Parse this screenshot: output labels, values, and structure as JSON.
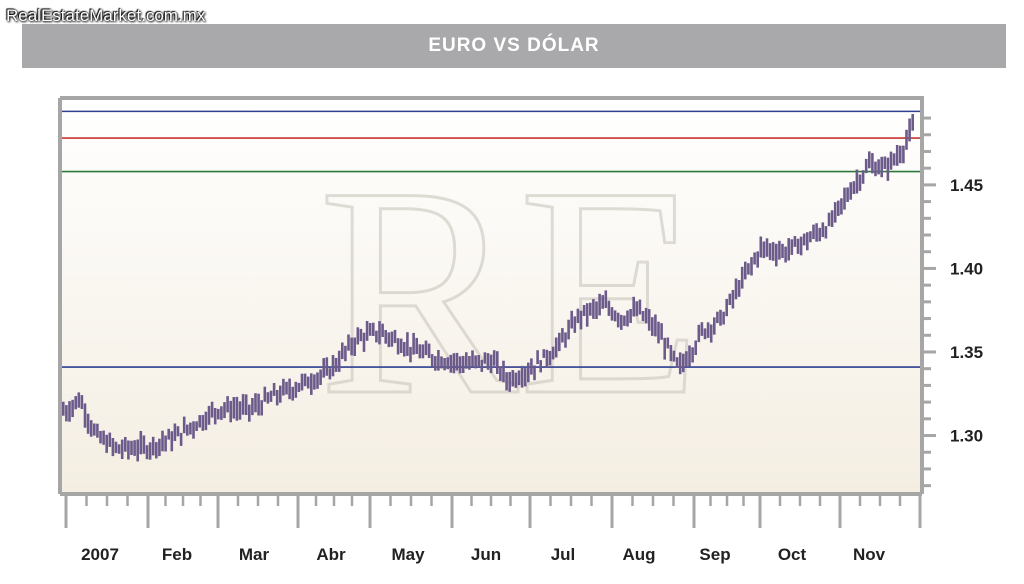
{
  "site": {
    "label": "RealEstateMarket.com.mx"
  },
  "watermark": {
    "text": "RE"
  },
  "colors": {
    "bar": "#6b5a8a",
    "blue_line": "#2e3f91",
    "red_line": "#c83232",
    "green_line": "#2d7a3a",
    "frame": "#a6a6a6",
    "bg_top": "#ffffff",
    "bg_bottom": "#f4eee2"
  },
  "chart_data": {
    "type": "bar",
    "subtype": "ohlc",
    "title": "EURO VS DÓLAR",
    "xlabel": "",
    "ylabel": "",
    "ylim": [
      1.265,
      1.502
    ],
    "y_ticks": [
      {
        "value": 1.3,
        "label": "1.30"
      },
      {
        "value": 1.35,
        "label": "1.35"
      },
      {
        "value": 1.4,
        "label": "1.40"
      },
      {
        "value": 1.45,
        "label": "1.45"
      }
    ],
    "x_labels": [
      "2007",
      "Feb",
      "Mar",
      "Abr",
      "May",
      "Jun",
      "Jul",
      "Aug",
      "Sep",
      "Oct",
      "Nov"
    ],
    "reference_lines": [
      {
        "value": 1.494,
        "color": "blue"
      },
      {
        "value": 1.478,
        "color": "red"
      },
      {
        "value": 1.458,
        "color": "green"
      },
      {
        "value": 1.341,
        "color": "blue"
      }
    ],
    "monthly_path": [
      {
        "month": 0.0,
        "value": 1.315
      },
      {
        "month": 0.15,
        "value": 1.322
      },
      {
        "month": 0.35,
        "value": 1.3
      },
      {
        "month": 0.6,
        "value": 1.292
      },
      {
        "month": 1.0,
        "value": 1.293
      },
      {
        "month": 1.4,
        "value": 1.3
      },
      {
        "month": 2.0,
        "value": 1.316
      },
      {
        "month": 2.4,
        "value": 1.316
      },
      {
        "month": 2.7,
        "value": 1.324
      },
      {
        "month": 3.0,
        "value": 1.33
      },
      {
        "month": 3.4,
        "value": 1.338
      },
      {
        "month": 3.8,
        "value": 1.358
      },
      {
        "month": 4.1,
        "value": 1.362
      },
      {
        "month": 4.5,
        "value": 1.352
      },
      {
        "month": 4.8,
        "value": 1.346
      },
      {
        "month": 5.2,
        "value": 1.343
      },
      {
        "month": 5.5,
        "value": 1.345
      },
      {
        "month": 5.7,
        "value": 1.333
      },
      {
        "month": 6.0,
        "value": 1.34
      },
      {
        "month": 6.3,
        "value": 1.352
      },
      {
        "month": 6.6,
        "value": 1.372
      },
      {
        "month": 6.9,
        "value": 1.378
      },
      {
        "month": 7.1,
        "value": 1.37
      },
      {
        "month": 7.3,
        "value": 1.375
      },
      {
        "month": 7.55,
        "value": 1.362
      },
      {
        "month": 7.8,
        "value": 1.34
      },
      {
        "month": 8.1,
        "value": 1.362
      },
      {
        "month": 8.4,
        "value": 1.37
      },
      {
        "month": 8.7,
        "value": 1.392
      },
      {
        "month": 9.0,
        "value": 1.412
      },
      {
        "month": 9.3,
        "value": 1.41
      },
      {
        "month": 9.6,
        "value": 1.418
      },
      {
        "month": 9.85,
        "value": 1.426
      },
      {
        "month": 10.1,
        "value": 1.446
      },
      {
        "month": 10.35,
        "value": 1.462
      },
      {
        "month": 10.55,
        "value": 1.46
      },
      {
        "month": 10.75,
        "value": 1.47
      },
      {
        "month": 10.9,
        "value": 1.485
      },
      {
        "month": 11.0,
        "value": 1.478
      }
    ]
  }
}
